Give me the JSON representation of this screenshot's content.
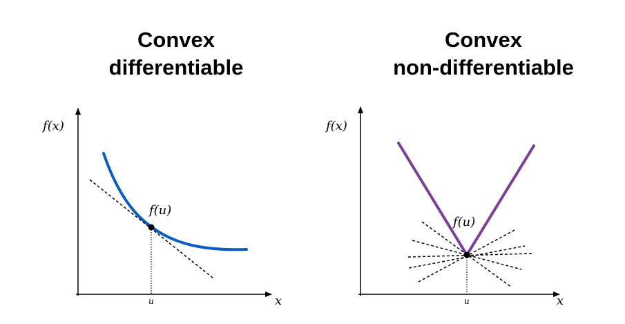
{
  "panels": [
    {
      "title_line1": "Convex",
      "title_line2": "differentiable",
      "y_axis_label": "f(x)",
      "x_axis_label": "x",
      "point_label": "f(u)",
      "tick_label": "u",
      "curve_color": "#0a5cc2",
      "curve_shape": "smooth convex decreasing curve",
      "tangent_lines": 1
    },
    {
      "title_line1": "Convex",
      "title_line2": "non-differentiable",
      "y_axis_label": "f(x)",
      "x_axis_label": "x",
      "point_label": "f(u)",
      "tick_label": "u",
      "curve_color": "#7b3f98",
      "curve_shape": "V-shaped kink at u",
      "tangent_lines": 5
    }
  ]
}
